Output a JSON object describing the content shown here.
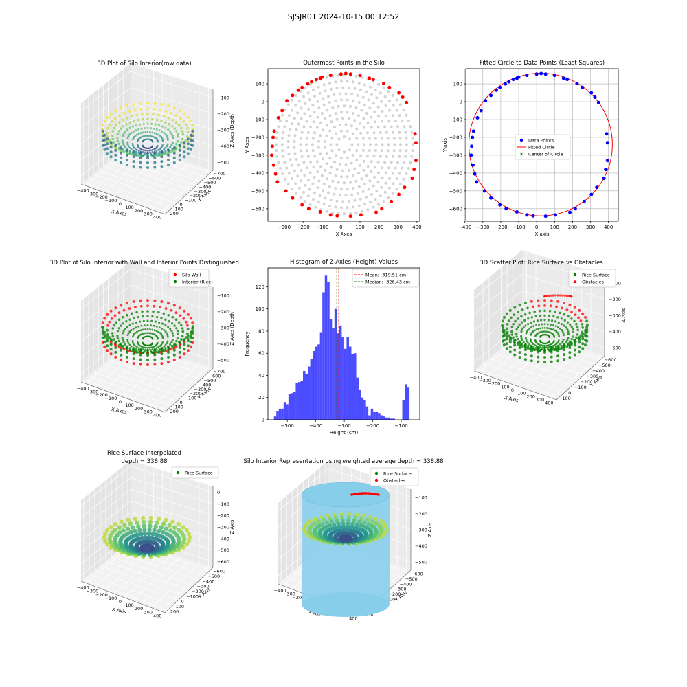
{
  "figure": {
    "suptitle": "SJSJR01 2024-10-15 00:12:52"
  },
  "colors": {
    "red": "#ff0000",
    "green": "#008000",
    "blue": "#0000ff",
    "grey": "#d3d3d3",
    "hist": "#0000ff",
    "wall": "#87ceeb",
    "viridis": [
      "#440154",
      "#3b528b",
      "#21918c",
      "#5ec962",
      "#fde725"
    ]
  },
  "chart_data": [
    {
      "type": "scatter3d",
      "title": "3D Plot of Silo Interior(row data)",
      "xlabel": "X Axes",
      "ylabel": "Y Axes",
      "zlabel": "Z Axes (Depth)",
      "xticks": [
        "−400",
        "−300",
        "−200",
        "−100",
        "0",
        "100",
        "200",
        "300",
        "400"
      ],
      "yticks": [
        "−700",
        "−600",
        "−500",
        "−400",
        "−300",
        "−200",
        "−100",
        "0",
        "100",
        "200"
      ],
      "zticks": [
        "−500",
        "−400",
        "−300",
        "−200",
        "−100"
      ],
      "colormap": "viridis"
    },
    {
      "type": "scatter",
      "title": "Outermost Points in the Silo",
      "xlabel": "X Axes",
      "ylabel": "Y Axes",
      "xlim": [
        -385,
        415
      ],
      "ylim": [
        -670,
        185
      ],
      "xticks": [
        -300,
        -200,
        -100,
        0,
        100,
        200,
        300,
        400
      ],
      "yticks": [
        -600,
        -500,
        -400,
        -300,
        -200,
        -100,
        0,
        100
      ],
      "outer_points": [
        [
          -355,
          -355
        ],
        [
          -365,
          -300
        ],
        [
          -362,
          -250
        ],
        [
          -358,
          -200
        ],
        [
          -352,
          -165
        ],
        [
          -330,
          -90
        ],
        [
          -310,
          -50
        ],
        [
          -285,
          5
        ],
        [
          -255,
          35
        ],
        [
          -225,
          65
        ],
        [
          -205,
          80
        ],
        [
          -175,
          100
        ],
        [
          -155,
          112
        ],
        [
          -130,
          125
        ],
        [
          -110,
          132
        ],
        [
          -100,
          138
        ],
        [
          -55,
          148
        ],
        [
          0,
          155
        ],
        [
          25,
          158
        ],
        [
          50,
          155
        ],
        [
          100,
          148
        ],
        [
          150,
          132
        ],
        [
          170,
          125
        ],
        [
          225,
          102
        ],
        [
          255,
          80
        ],
        [
          305,
          50
        ],
        [
          325,
          25
        ],
        [
          345,
          -5
        ],
        [
          390,
          -180
        ],
        [
          395,
          -230
        ],
        [
          395,
          -330
        ],
        [
          385,
          -380
        ],
        [
          375,
          -430
        ],
        [
          335,
          -480
        ],
        [
          305,
          -520
        ],
        [
          265,
          -560
        ],
        [
          215,
          -600
        ],
        [
          185,
          -620
        ],
        [
          105,
          -635
        ],
        [
          50,
          -642
        ],
        [
          -20,
          -640
        ],
        [
          -55,
          -635
        ],
        [
          -110,
          -618
        ],
        [
          -170,
          -600
        ],
        [
          -205,
          -578
        ],
        [
          -255,
          -540
        ],
        [
          -290,
          -500
        ],
        [
          -335,
          -450
        ],
        [
          -345,
          -405
        ]
      ],
      "center": [
        18,
        -240
      ],
      "inner_rings": [
        [
          20,
          -240,
          100
        ],
        [
          20,
          -240,
          180
        ],
        [
          20,
          -240,
          260
        ],
        [
          20,
          -240,
          330
        ]
      ]
    },
    {
      "type": "scatter",
      "title": "Fitted Circle to Data Points (Least Squares)",
      "xlabel": "X-axis",
      "ylabel": "Y-axis",
      "xlim": [
        -395,
        455
      ],
      "ylim": [
        -670,
        185
      ],
      "xticks": [
        -400,
        -300,
        -200,
        -100,
        0,
        100,
        200,
        300,
        400
      ],
      "yticks": [
        -600,
        -500,
        -400,
        -300,
        -200,
        -100,
        0,
        100
      ],
      "grid": true,
      "circle": {
        "cx": 22,
        "cy": -240,
        "r": 400
      },
      "legend": [
        "Data Points",
        "Fitted Circle",
        "Center of Circle"
      ],
      "legend_position": "center"
    },
    {
      "type": "scatter3d",
      "title": "3D Plot of Silo Interior with Wall and Interior Points Distinguished",
      "xlabel": "X Axes",
      "ylabel": "Y Axes",
      "zlabel": "Z Axes (Depth)",
      "xticks": [
        "−400",
        "−300",
        "−200",
        "−100",
        "0",
        "100",
        "200",
        "300",
        "400"
      ],
      "yticks": [
        "−700",
        "−600",
        "−500",
        "−400",
        "−300",
        "−200",
        "−100",
        "0",
        "100",
        "200"
      ],
      "zticks": [
        "−500",
        "−400",
        "−300",
        "−200",
        "−100"
      ],
      "legend": [
        "Silo Wall",
        "Interior (Rice)"
      ],
      "legend_position": "top-right"
    },
    {
      "type": "bar",
      "title": "Histogram of Z-Axies (Height) Values",
      "xlabel": "Height (cm)",
      "ylabel": "Frequency",
      "xlim": [
        -568,
        -35
      ],
      "ylim": [
        0,
        137
      ],
      "xticks": [
        -500,
        -400,
        -300,
        -200,
        -100
      ],
      "yticks": [
        0,
        20,
        40,
        60,
        80,
        100,
        120
      ],
      "bin_start": -547,
      "bin_width": 8.5,
      "values": [
        3,
        8,
        10,
        10,
        16,
        14,
        23,
        24,
        25,
        33,
        34,
        35,
        44,
        41,
        48,
        55,
        62,
        66,
        68,
        79,
        115,
        130,
        124,
        91,
        83,
        100,
        78,
        85,
        75,
        64,
        75,
        66,
        59,
        60,
        38,
        27,
        20,
        18,
        12,
        4,
        10,
        7,
        7,
        6,
        4,
        3,
        2,
        2,
        1,
        1,
        0,
        0,
        0,
        18,
        32,
        29
      ],
      "mean": -319.51,
      "median": -326.43,
      "legend": [
        "Mean: -319.51 cm",
        "Median: -326.43 cm"
      ],
      "legend_position": "top-right"
    },
    {
      "type": "scatter3d",
      "title": "3D Scatter Plot: Rice Surface vs Obstacles",
      "xlabel": "X Axis",
      "ylabel": "Y Axis",
      "zlabel": "Z Axis",
      "xticks": [
        "−400",
        "−300",
        "−200",
        "−100",
        "0",
        "100",
        "200",
        "300",
        "400"
      ],
      "yticks": [
        "−600",
        "−500",
        "−400",
        "−300",
        "−200",
        "−100",
        "0",
        "100"
      ],
      "zticks": [
        "−500",
        "−400",
        "−300",
        "−200",
        "−100"
      ],
      "legend": [
        "Rice Surface",
        "Obstacles"
      ],
      "legend_position": "top-right"
    },
    {
      "type": "surface3d",
      "title": "Rice Surface Interpolated",
      "subtitle": "depth = 338.88",
      "xlabel": "X Axis",
      "ylabel": "Y Axis",
      "zlabel": "Z Axis",
      "xticks": [
        "−400",
        "−300",
        "−200",
        "−100",
        "0",
        "100",
        "200",
        "300",
        "400"
      ],
      "yticks": [
        "−600",
        "−500",
        "−400",
        "−300",
        "−200",
        "−100",
        "0",
        "100",
        "200"
      ],
      "zticks": [
        "−600",
        "−500",
        "−400",
        "−300",
        "−200",
        "−100",
        "0"
      ],
      "legend": [
        "Rice Surface"
      ],
      "legend_position": "top-right"
    },
    {
      "type": "surface3d",
      "title": "Silo Interior Representation using weighted average depth = 338.88",
      "xlabel": "X Axis",
      "ylabel": "Y Axis",
      "zlabel": "Z Axis",
      "xticks": [
        "−400",
        "−300",
        "−200",
        "−100",
        "0",
        "100",
        "200",
        "300",
        "400"
      ],
      "yticks": [
        "−600",
        "−500",
        "−400",
        "−300",
        "−200",
        "−100",
        "0",
        "100",
        "200"
      ],
      "zticks": [
        "−500",
        "−400",
        "−300",
        "−200",
        "−100"
      ],
      "legend": [
        "Rice Surface",
        "Obstacles"
      ],
      "legend_position": "top-center"
    }
  ]
}
